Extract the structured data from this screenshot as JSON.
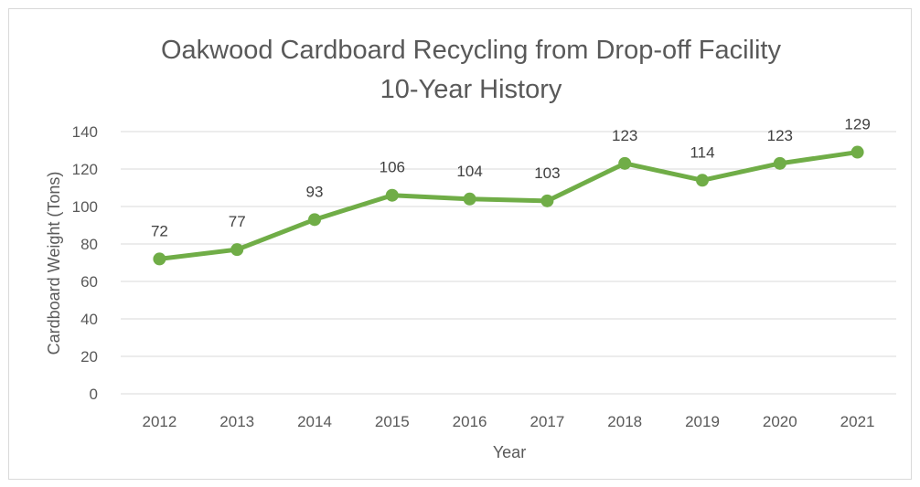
{
  "chart_data": {
    "type": "line",
    "title": "Oakwood Cardboard Recycling from Drop-off Facility",
    "subtitle": "10-Year History",
    "xlabel": "Year",
    "ylabel": "Cardboard Weight (Tons)",
    "categories": [
      "2012",
      "2013",
      "2014",
      "2015",
      "2016",
      "2017",
      "2018",
      "2019",
      "2020",
      "2021"
    ],
    "series": [
      {
        "values": [
          72,
          77,
          93,
          106,
          104,
          103,
          123,
          114,
          123,
          129
        ],
        "color": "#70ad47"
      }
    ],
    "data_labels": [
      "72",
      "77",
      "93",
      "106",
      "104",
      "103",
      "123",
      "114",
      "123",
      "129"
    ],
    "ylim": [
      0,
      140
    ],
    "yticks": [
      0,
      20,
      40,
      60,
      80,
      100,
      120,
      140
    ],
    "grid": true,
    "legend": "none",
    "gridline_color": "#d9d9d9",
    "text_color": "#595959"
  }
}
